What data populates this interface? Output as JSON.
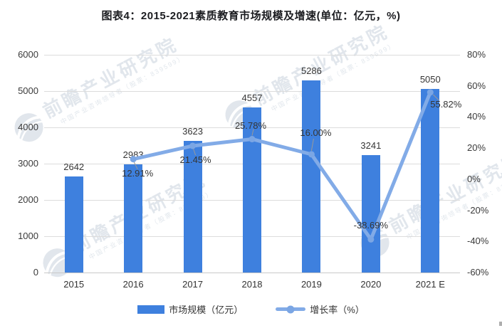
{
  "title": "图表4：2015-2021素质教育市场规模及增速(单位：亿元，%)",
  "watermark": {
    "main": "前瞻产业研究院",
    "sub": "中国产业咨询领导者（股票：839599）"
  },
  "chart_data": {
    "type": "bar",
    "combo": "bar+line dual-axis",
    "title": "图表4：2015-2021素质教育市场规模及增速(单位：亿元，%)",
    "categories": [
      "2015",
      "2016",
      "2017",
      "2018",
      "2019",
      "2020",
      "2021 E"
    ],
    "series": [
      {
        "name": "市场规模（亿元）",
        "type": "bar",
        "axis": "left",
        "color": "#3e80de",
        "values": [
          2642,
          2983,
          3623,
          4557,
          5286,
          3241,
          5050
        ],
        "value_labels": [
          "2642",
          "2983",
          "3623",
          "4557",
          "5286",
          "3241",
          "5050"
        ]
      },
      {
        "name": "增长率（%）",
        "type": "line",
        "axis": "right",
        "color": "#82abe7",
        "marker_color": "#7ba6e4",
        "values": [
          null,
          12.91,
          21.45,
          25.78,
          16.0,
          -38.69,
          55.82
        ],
        "value_labels": [
          "",
          "12.91%",
          "21.45%",
          "25.78%",
          "16.00%",
          "-38.69%",
          "55.82%"
        ]
      }
    ],
    "left_axis": {
      "min": 0,
      "max": 6000,
      "tick_labels": [
        "6000",
        "5000",
        "4000",
        "3000",
        "2000",
        "1000",
        "0"
      ]
    },
    "right_axis": {
      "min": -60,
      "max": 80,
      "tick_labels": [
        "80%",
        "60%",
        "40%",
        "20%",
        "0%",
        "-20%",
        "-40%",
        "-60%"
      ]
    },
    "legend": {
      "position": "bottom",
      "items": [
        "市场规模（亿元）",
        "增长率（%）"
      ]
    },
    "grid": "horizontal",
    "leader_line_color": "#999999"
  }
}
